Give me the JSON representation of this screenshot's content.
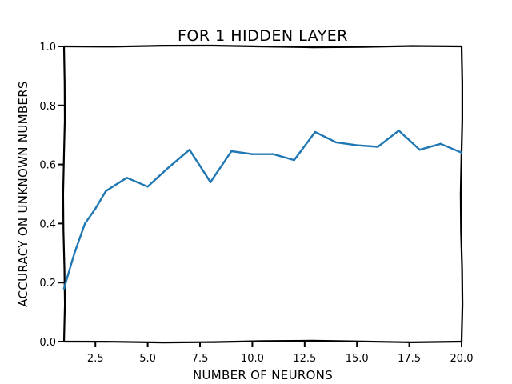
{
  "chart_data": {
    "type": "line",
    "title": "FOR 1 HIDDEN LAYER",
    "xlabel": "NUMBER OF NEURONS",
    "ylabel": "ACCURACY ON UNKNOWN NUMBERS",
    "xlim": [
      1,
      20
    ],
    "ylim": [
      0.0,
      1.0
    ],
    "xticks": [
      2.5,
      5.0,
      7.5,
      10.0,
      12.5,
      15.0,
      17.5,
      20.0
    ],
    "xtick_labels": [
      "2.5",
      "5.0",
      "7.5",
      "10.0",
      "12.5",
      "15.0",
      "17.5",
      "20.0"
    ],
    "yticks": [
      0.0,
      0.2,
      0.4,
      0.6,
      0.8,
      1.0
    ],
    "ytick_labels": [
      "0.0",
      "0.2",
      "0.4",
      "0.6",
      "0.8",
      "1.0"
    ],
    "grid": false,
    "line_color": "#1f77b4",
    "style": "xkcd",
    "series": [
      {
        "x": [
          1,
          1.5,
          2,
          2.5,
          3,
          4,
          5,
          6,
          7,
          8,
          9,
          10,
          11,
          12,
          13,
          14,
          15,
          16,
          17,
          18,
          19,
          20
        ],
        "values": [
          0.18,
          0.3,
          0.4,
          0.45,
          0.51,
          0.555,
          0.525,
          0.59,
          0.65,
          0.54,
          0.645,
          0.635,
          0.635,
          0.615,
          0.71,
          0.675,
          0.665,
          0.66,
          0.715,
          0.65,
          0.67,
          0.64
        ]
      }
    ]
  }
}
